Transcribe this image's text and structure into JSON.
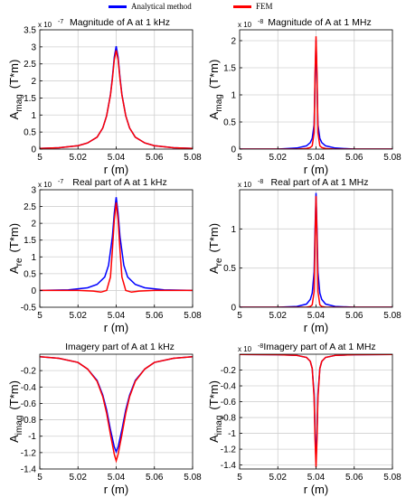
{
  "legend": [
    {
      "label": "Analytical method",
      "color": "#0000ff"
    },
    {
      "label": "FEM",
      "color": "#ff0000"
    }
  ],
  "chart_data": [
    {
      "type": "line",
      "title": "Magnitude of A at 1 kHz",
      "xlabel": "r (m)",
      "ylabel_main": "A",
      "ylabel_sub": "mag",
      "ylabel_unit": "(T*m)",
      "multiplier": "x 10",
      "multiplier_exp": "-7",
      "xlim": [
        5,
        5.08
      ],
      "ylim": [
        0,
        3.5
      ],
      "xticks": [
        5,
        5.02,
        5.04,
        5.06,
        5.08
      ],
      "xtick_labels": [
        "5",
        "5.02",
        "5.04",
        "5.06",
        "5.08"
      ],
      "yticks": [
        0,
        0.5,
        1,
        1.5,
        2,
        2.5,
        3,
        3.5
      ],
      "ytick_labels": [
        "0",
        "0.5",
        "1",
        "1.5",
        "2",
        "2.5",
        "3",
        "3.5"
      ],
      "grid": true,
      "series": [
        {
          "name": "Analytical method",
          "color": "#0000ff",
          "x": [
            5,
            5.01,
            5.02,
            5.025,
            5.03,
            5.033,
            5.035,
            5.037,
            5.038,
            5.039,
            5.04,
            5.041,
            5.042,
            5.043,
            5.045,
            5.047,
            5.05,
            5.055,
            5.06,
            5.07,
            5.08
          ],
          "y": [
            0.02,
            0.04,
            0.1,
            0.18,
            0.35,
            0.62,
            0.98,
            1.6,
            2.1,
            2.7,
            3.02,
            2.7,
            2.1,
            1.6,
            0.98,
            0.62,
            0.35,
            0.18,
            0.1,
            0.04,
            0.02
          ]
        },
        {
          "name": "FEM",
          "color": "#ff0000",
          "x": [
            5,
            5.01,
            5.02,
            5.025,
            5.03,
            5.033,
            5.035,
            5.037,
            5.038,
            5.039,
            5.04,
            5.041,
            5.042,
            5.043,
            5.045,
            5.047,
            5.05,
            5.055,
            5.06,
            5.07,
            5.08
          ],
          "y": [
            0.02,
            0.04,
            0.1,
            0.18,
            0.35,
            0.62,
            0.98,
            1.58,
            2.05,
            2.62,
            2.9,
            2.62,
            2.05,
            1.58,
            0.98,
            0.62,
            0.35,
            0.18,
            0.1,
            0.04,
            0.02
          ]
        }
      ]
    },
    {
      "type": "line",
      "title": "Magnitude of A at 1 MHz",
      "xlabel": "r (m)",
      "ylabel_main": "A",
      "ylabel_sub": "mag",
      "ylabel_unit": "(T*m)",
      "multiplier": "x 10",
      "multiplier_exp": "-8",
      "xlim": [
        5,
        5.08
      ],
      "ylim": [
        0,
        2.2
      ],
      "xticks": [
        5,
        5.02,
        5.04,
        5.06,
        5.08
      ],
      "xtick_labels": [
        "5",
        "5.02",
        "5.04",
        "5.06",
        "5.08"
      ],
      "yticks": [
        0,
        0.5,
        1,
        1.5,
        2
      ],
      "ytick_labels": [
        "0",
        "0.5",
        "1",
        "1.5",
        "2"
      ],
      "grid": true,
      "series": [
        {
          "name": "Analytical method",
          "color": "#0000ff",
          "x": [
            5,
            5.02,
            5.03,
            5.035,
            5.037,
            5.038,
            5.039,
            5.0395,
            5.04,
            5.0405,
            5.041,
            5.042,
            5.043,
            5.045,
            5.05,
            5.06,
            5.08
          ],
          "y": [
            0.0,
            0.0,
            0.02,
            0.06,
            0.12,
            0.2,
            0.45,
            1.3,
            2.0,
            1.3,
            0.45,
            0.2,
            0.12,
            0.06,
            0.02,
            0.0,
            0.0
          ]
        },
        {
          "name": "FEM",
          "color": "#ff0000",
          "x": [
            5,
            5.02,
            5.03,
            5.035,
            5.037,
            5.038,
            5.039,
            5.0395,
            5.04,
            5.0405,
            5.041,
            5.042,
            5.043,
            5.045,
            5.05,
            5.06,
            5.08
          ],
          "y": [
            0.0,
            0.0,
            0.0,
            0.01,
            0.03,
            0.06,
            0.3,
            1.4,
            2.08,
            1.4,
            0.3,
            0.06,
            0.03,
            0.01,
            0.0,
            0.0,
            0.0
          ]
        }
      ]
    },
    {
      "type": "line",
      "title": "Real part of A at 1 kHz",
      "xlabel": "r (m)",
      "ylabel_main": "A",
      "ylabel_sub": "re",
      "ylabel_unit": "(T*m)",
      "multiplier": "x 10",
      "multiplier_exp": "-7",
      "xlim": [
        5,
        5.08
      ],
      "ylim": [
        -0.5,
        3
      ],
      "xticks": [
        5,
        5.02,
        5.04,
        5.06,
        5.08
      ],
      "xtick_labels": [
        "5",
        "5.02",
        "5.04",
        "5.06",
        "5.08"
      ],
      "yticks": [
        -0.5,
        0,
        0.5,
        1,
        1.5,
        2,
        2.5,
        3
      ],
      "ytick_labels": [
        "-0.5",
        "0",
        "0.5",
        "1",
        "1.5",
        "2",
        "2.5",
        "3"
      ],
      "grid": true,
      "series": [
        {
          "name": "Analytical method",
          "color": "#0000ff",
          "x": [
            5,
            5.015,
            5.025,
            5.03,
            5.034,
            5.036,
            5.038,
            5.039,
            5.04,
            5.041,
            5.042,
            5.044,
            5.046,
            5.05,
            5.055,
            5.065,
            5.08
          ],
          "y": [
            0.0,
            0.02,
            0.08,
            0.18,
            0.4,
            0.75,
            1.6,
            2.3,
            2.78,
            2.3,
            1.6,
            0.75,
            0.4,
            0.18,
            0.08,
            0.02,
            0.0
          ]
        },
        {
          "name": "FEM",
          "color": "#ff0000",
          "x": [
            5,
            5.02,
            5.028,
            5.032,
            5.035,
            5.037,
            5.038,
            5.039,
            5.04,
            5.041,
            5.042,
            5.043,
            5.045,
            5.048,
            5.052,
            5.06,
            5.08
          ],
          "y": [
            0.0,
            0.0,
            -0.02,
            -0.05,
            0.0,
            0.4,
            1.2,
            2.1,
            2.62,
            2.1,
            1.2,
            0.4,
            0.0,
            -0.05,
            -0.02,
            0.0,
            0.0
          ]
        }
      ]
    },
    {
      "type": "line",
      "title": "Real part of A at 1 MHz",
      "xlabel": "r (m)",
      "ylabel_main": "A",
      "ylabel_sub": "re",
      "ylabel_unit": "(T*m)",
      "multiplier": "x 10",
      "multiplier_exp": "-8",
      "xlim": [
        5,
        5.08
      ],
      "ylim": [
        0,
        1.5
      ],
      "xticks": [
        5,
        5.02,
        5.04,
        5.06,
        5.08
      ],
      "xtick_labels": [
        "5",
        "5.02",
        "5.04",
        "5.06",
        "5.08"
      ],
      "yticks": [
        0,
        0.5,
        1
      ],
      "ytick_labels": [
        "0",
        "0.5",
        "1"
      ],
      "grid": true,
      "series": [
        {
          "name": "Analytical method",
          "color": "#0000ff",
          "x": [
            5,
            5.02,
            5.03,
            5.035,
            5.037,
            5.038,
            5.039,
            5.0395,
            5.04,
            5.0405,
            5.041,
            5.042,
            5.043,
            5.045,
            5.05,
            5.06,
            5.08
          ],
          "y": [
            0.0,
            0.0,
            0.01,
            0.04,
            0.1,
            0.18,
            0.45,
            1.0,
            1.46,
            1.0,
            0.45,
            0.18,
            0.1,
            0.04,
            0.01,
            0.0,
            0.0
          ]
        },
        {
          "name": "FEM",
          "color": "#ff0000",
          "x": [
            5,
            5.02,
            5.03,
            5.035,
            5.037,
            5.038,
            5.039,
            5.0395,
            5.04,
            5.0405,
            5.041,
            5.042,
            5.043,
            5.045,
            5.05,
            5.06,
            5.08
          ],
          "y": [
            0.0,
            0.0,
            0.0,
            0.0,
            0.01,
            0.03,
            0.2,
            0.9,
            1.42,
            0.9,
            0.2,
            0.03,
            0.01,
            0.0,
            0.0,
            0.0,
            0.0
          ]
        }
      ]
    },
    {
      "type": "line",
      "title": "Imagery part of A at 1 kHz",
      "xlabel": "r (m)",
      "ylabel_main": "A",
      "ylabel_sub": "imag",
      "ylabel_unit": "(T*m)",
      "multiplier": "",
      "multiplier_exp": "",
      "xlim": [
        5,
        5.08
      ],
      "ylim": [
        -1.4,
        0
      ],
      "xticks": [
        5,
        5.02,
        5.04,
        5.06,
        5.08
      ],
      "xtick_labels": [
        "5",
        "5.02",
        "5.04",
        "5.06",
        "5.08"
      ],
      "yticks": [
        -1.4,
        -1.2,
        -1,
        -0.8,
        -0.6,
        -0.4,
        -0.2
      ],
      "ytick_labels": [
        "-1.4",
        "-1.2",
        "-1",
        "-0.8",
        "-0.6",
        "-0.4",
        "-0.2"
      ],
      "grid": true,
      "series": [
        {
          "name": "Analytical method",
          "color": "#0000ff",
          "x": [
            5,
            5.01,
            5.02,
            5.025,
            5.03,
            5.033,
            5.035,
            5.037,
            5.039,
            5.04,
            5.041,
            5.043,
            5.045,
            5.047,
            5.05,
            5.055,
            5.06,
            5.07,
            5.08
          ],
          "y": [
            -0.03,
            -0.05,
            -0.1,
            -0.18,
            -0.32,
            -0.5,
            -0.68,
            -0.92,
            -1.13,
            -1.19,
            -1.13,
            -0.92,
            -0.68,
            -0.5,
            -0.32,
            -0.18,
            -0.1,
            -0.05,
            -0.03
          ]
        },
        {
          "name": "FEM",
          "color": "#ff0000",
          "x": [
            5,
            5.01,
            5.02,
            5.025,
            5.03,
            5.033,
            5.035,
            5.037,
            5.039,
            5.04,
            5.041,
            5.043,
            5.045,
            5.047,
            5.05,
            5.055,
            5.06,
            5.07,
            5.08
          ],
          "y": [
            -0.03,
            -0.05,
            -0.1,
            -0.18,
            -0.33,
            -0.52,
            -0.72,
            -0.98,
            -1.22,
            -1.3,
            -1.22,
            -0.98,
            -0.72,
            -0.52,
            -0.33,
            -0.18,
            -0.1,
            -0.05,
            -0.03
          ]
        }
      ]
    },
    {
      "type": "line",
      "title": "Imagery part of A at 1 MHz",
      "xlabel": "r (m)",
      "ylabel_main": "A",
      "ylabel_sub": "imag",
      "ylabel_unit": "(T*m)",
      "multiplier": "x 10",
      "multiplier_exp": "-8",
      "xlim": [
        5,
        5.08
      ],
      "ylim": [
        -1.45,
        0
      ],
      "xticks": [
        5,
        5.02,
        5.04,
        5.06,
        5.08
      ],
      "xtick_labels": [
        "5",
        "5.02",
        "5.04",
        "5.06",
        "5.08"
      ],
      "yticks": [
        -1.4,
        -1.2,
        -1,
        -0.8,
        -0.6,
        -0.4,
        -0.2
      ],
      "ytick_labels": [
        "-1.4",
        "-1.2",
        "-1",
        "-0.8",
        "-0.6",
        "-0.4",
        "-0.2"
      ],
      "grid": true,
      "series": [
        {
          "name": "Analytical method",
          "color": "#0000ff",
          "x": [
            5,
            5.02,
            5.03,
            5.035,
            5.037,
            5.038,
            5.039,
            5.0395,
            5.04,
            5.0405,
            5.041,
            5.042,
            5.043,
            5.045,
            5.05,
            5.06,
            5.08
          ],
          "y": [
            -0.003,
            -0.006,
            -0.015,
            -0.04,
            -0.09,
            -0.18,
            -0.5,
            -1.0,
            -1.36,
            -1.0,
            -0.5,
            -0.18,
            -0.09,
            -0.04,
            -0.015,
            -0.006,
            -0.003
          ]
        },
        {
          "name": "FEM",
          "color": "#ff0000",
          "x": [
            5,
            5.02,
            5.03,
            5.035,
            5.037,
            5.038,
            5.039,
            5.0395,
            5.04,
            5.0405,
            5.041,
            5.042,
            5.043,
            5.045,
            5.05,
            5.06,
            5.08
          ],
          "y": [
            -0.003,
            -0.006,
            -0.015,
            -0.04,
            -0.09,
            -0.18,
            -0.55,
            -1.08,
            -1.43,
            -1.08,
            -0.55,
            -0.18,
            -0.09,
            -0.04,
            -0.015,
            -0.006,
            -0.003
          ]
        }
      ]
    }
  ]
}
